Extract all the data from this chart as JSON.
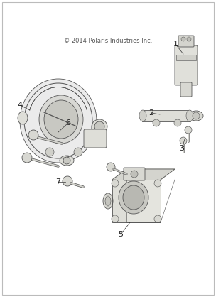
{
  "bg_color": "#ffffff",
  "border_color": "#aaaaaa",
  "copyright": "© 2014 Polaris Industries Inc.",
  "lc": "#444444",
  "fc_light": "#e8e8e4",
  "fc_mid": "#d4d4ce",
  "fc_dark": "#b8b8b2",
  "ec": "#555555",
  "lw": 0.6,
  "copyright_fontsize": 6.0,
  "label_fontsize": 8.0,
  "label_color": "#222222",
  "leader_lw": 0.5,
  "leader_color": "#333333"
}
